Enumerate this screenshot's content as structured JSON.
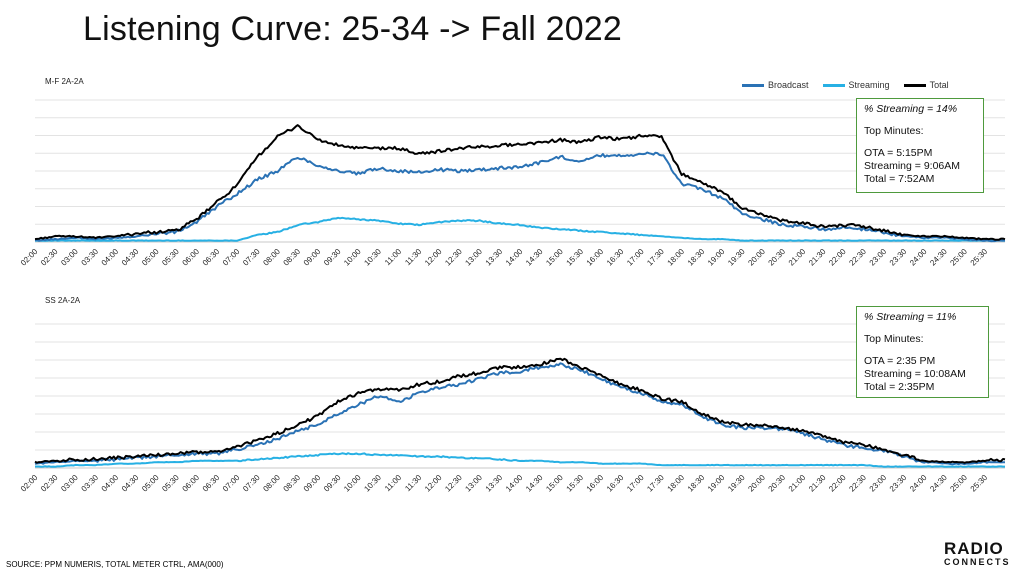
{
  "title": "Listening Curve: 25-34 -> Fall 2022",
  "source": "SOURCE: PPM NUMERIS, TOTAL METER CTRL, AMA(000)",
  "logo": {
    "line1": "RADIO",
    "line2": "CONNECTS"
  },
  "legend": [
    {
      "name": "Broadcast",
      "color": "#2a72b5"
    },
    {
      "name": "Streaming",
      "color": "#27b0e4"
    },
    {
      "name": "Total",
      "color": "#000000"
    }
  ],
  "panels": [
    {
      "label": "M-F 2A-2A",
      "callout": {
        "streaming_pct": "% Streaming  =  14%",
        "top_minutes": "Top Minutes:",
        "ota": "OTA = 5:15PM",
        "streaming": "Streaming = 9:06AM",
        "total": "Total = 7:52AM"
      }
    },
    {
      "label": "SS 2A-2A",
      "callout": {
        "streaming_pct": "% Streaming = 11%",
        "top_minutes": "Top Minutes:",
        "ota": "OTA = 2:35  PM",
        "streaming": "Streaming = 10:08AM",
        "total": "Total = 2:35PM"
      }
    }
  ],
  "chart_data": [
    {
      "type": "line",
      "title": "M-F 2A-2A",
      "x_ticks": [
        "02:00",
        "02:30",
        "03:00",
        "03:30",
        "04:00",
        "04:30",
        "05:00",
        "05:30",
        "06:00",
        "06:30",
        "07:00",
        "07:30",
        "08:00",
        "08:30",
        "09:00",
        "09:30",
        "10:00",
        "10:30",
        "11:00",
        "11:30",
        "12:00",
        "12:30",
        "13:00",
        "13:30",
        "14:00",
        "14:30",
        "15:00",
        "15:30",
        "16:00",
        "16:30",
        "17:00",
        "17:30",
        "18:00",
        "18:30",
        "19:00",
        "19:30",
        "20:00",
        "20:30",
        "21:00",
        "21:30",
        "22:00",
        "22:30",
        "23:00",
        "23:30",
        "24:00",
        "24:30",
        "25:00",
        "25:30"
      ],
      "x_hours": [
        2.0,
        2.5,
        3.0,
        3.5,
        4.0,
        4.5,
        5.0,
        5.5,
        6.0,
        6.5,
        7.0,
        7.5,
        8.0,
        8.5,
        9.0,
        9.5,
        10.0,
        10.5,
        11.0,
        11.5,
        12.0,
        12.5,
        13.0,
        13.5,
        14.0,
        14.5,
        15.0,
        15.5,
        16.0,
        16.5,
        17.0,
        17.5,
        18.0,
        18.5,
        19.0,
        19.5,
        20.0,
        20.5,
        21.0,
        21.5,
        22.0,
        22.5,
        23.0,
        23.5,
        24.0,
        24.5,
        25.0,
        25.5,
        26.0
      ],
      "ylim": [
        0,
        100
      ],
      "grid": true,
      "legend": "top-right",
      "y_unit": "relative share of the panel peak, estimated",
      "series": [
        {
          "name": "Broadcast",
          "color": "#2a72b5",
          "values": [
            1,
            2,
            3,
            2,
            3,
            4,
            6,
            7,
            14,
            25,
            34,
            44,
            50,
            60,
            54,
            50,
            48,
            52,
            50,
            49,
            51,
            50,
            51,
            52,
            53,
            56,
            60,
            57,
            61,
            61,
            62,
            62,
            41,
            37,
            31,
            20,
            16,
            12,
            11,
            9,
            10,
            9,
            7,
            4,
            3,
            3,
            2,
            1,
            1
          ]
        },
        {
          "name": "Streaming",
          "color": "#27b0e4",
          "values": [
            1,
            1,
            1,
            1,
            1,
            1,
            1,
            1,
            1,
            1,
            1,
            5,
            7,
            12,
            14,
            17,
            16,
            15,
            13,
            12,
            14,
            15,
            15,
            13,
            12,
            10,
            9,
            8,
            7,
            6,
            5,
            4,
            3,
            2,
            2,
            1,
            1,
            1,
            1,
            1,
            1,
            1,
            1,
            1,
            1,
            1,
            1,
            1,
            1
          ]
        },
        {
          "name": "Total",
          "color": "#000000",
          "values": [
            2,
            4,
            4,
            3,
            4,
            6,
            7,
            8,
            16,
            28,
            40,
            60,
            74,
            82,
            72,
            68,
            66,
            66,
            66,
            62,
            64,
            66,
            67,
            68,
            69,
            70,
            72,
            70,
            74,
            72,
            75,
            74,
            48,
            42,
            35,
            24,
            19,
            15,
            13,
            11,
            12,
            11,
            8,
            5,
            4,
            4,
            3,
            2,
            2
          ]
        }
      ]
    },
    {
      "type": "line",
      "title": "SS 2A-2A",
      "x_ticks": [
        "02:00",
        "02:30",
        "03:00",
        "03:30",
        "04:00",
        "04:30",
        "05:00",
        "05:30",
        "06:00",
        "06:30",
        "07:00",
        "07:30",
        "08:00",
        "08:30",
        "09:00",
        "09:30",
        "10:00",
        "10:30",
        "11:00",
        "11:30",
        "12:00",
        "12:30",
        "13:00",
        "13:30",
        "14:00",
        "14:30",
        "15:00",
        "15:30",
        "16:00",
        "16:30",
        "17:00",
        "17:30",
        "18:00",
        "18:30",
        "19:00",
        "19:30",
        "20:00",
        "20:30",
        "21:00",
        "21:30",
        "22:00",
        "22:30",
        "23:00",
        "23:30",
        "24:00",
        "24:30",
        "25:00",
        "25:30"
      ],
      "x_hours": [
        2.0,
        2.5,
        3.0,
        3.5,
        4.0,
        4.5,
        5.0,
        5.5,
        6.0,
        6.5,
        7.0,
        7.5,
        8.0,
        8.5,
        9.0,
        9.5,
        10.0,
        10.5,
        11.0,
        11.5,
        12.0,
        12.5,
        13.0,
        13.5,
        14.0,
        14.5,
        15.0,
        15.5,
        16.0,
        16.5,
        17.0,
        17.5,
        18.0,
        18.5,
        19.0,
        19.5,
        20.0,
        20.5,
        21.0,
        21.5,
        22.0,
        22.5,
        23.0,
        23.5,
        24.0,
        24.5,
        25.0,
        25.5,
        26.0
      ],
      "ylim": [
        0,
        100
      ],
      "grid": true,
      "legend": "none",
      "y_unit": "relative share of the panel peak, estimated",
      "series": [
        {
          "name": "Broadcast",
          "color": "#2a72b5",
          "values": [
            3,
            4,
            5,
            5,
            6,
            7,
            8,
            9,
            10,
            10,
            13,
            16,
            20,
            26,
            30,
            38,
            44,
            50,
            46,
            52,
            56,
            58,
            62,
            66,
            67,
            70,
            72,
            68,
            62,
            56,
            52,
            46,
            44,
            36,
            30,
            28,
            28,
            27,
            24,
            20,
            16,
            14,
            12,
            8,
            4,
            3,
            3,
            4,
            4
          ]
        },
        {
          "name": "Streaming",
          "color": "#27b0e4",
          "values": [
            1,
            1,
            2,
            2,
            3,
            3,
            4,
            4,
            5,
            5,
            5,
            6,
            7,
            8,
            9,
            10,
            10,
            9,
            9,
            8,
            8,
            7,
            7,
            6,
            5,
            5,
            4,
            4,
            3,
            3,
            3,
            2,
            2,
            2,
            2,
            2,
            2,
            2,
            2,
            2,
            2,
            2,
            1,
            1,
            1,
            1,
            1,
            1,
            1
          ]
        },
        {
          "name": "Total",
          "color": "#000000",
          "values": [
            4,
            5,
            6,
            6,
            7,
            8,
            9,
            10,
            11,
            11,
            15,
            19,
            24,
            30,
            36,
            46,
            52,
            55,
            54,
            58,
            60,
            64,
            66,
            70,
            70,
            72,
            76,
            70,
            64,
            58,
            54,
            48,
            46,
            38,
            32,
            30,
            30,
            28,
            26,
            22,
            18,
            16,
            13,
            9,
            5,
            4,
            4,
            5,
            6
          ]
        }
      ]
    }
  ]
}
